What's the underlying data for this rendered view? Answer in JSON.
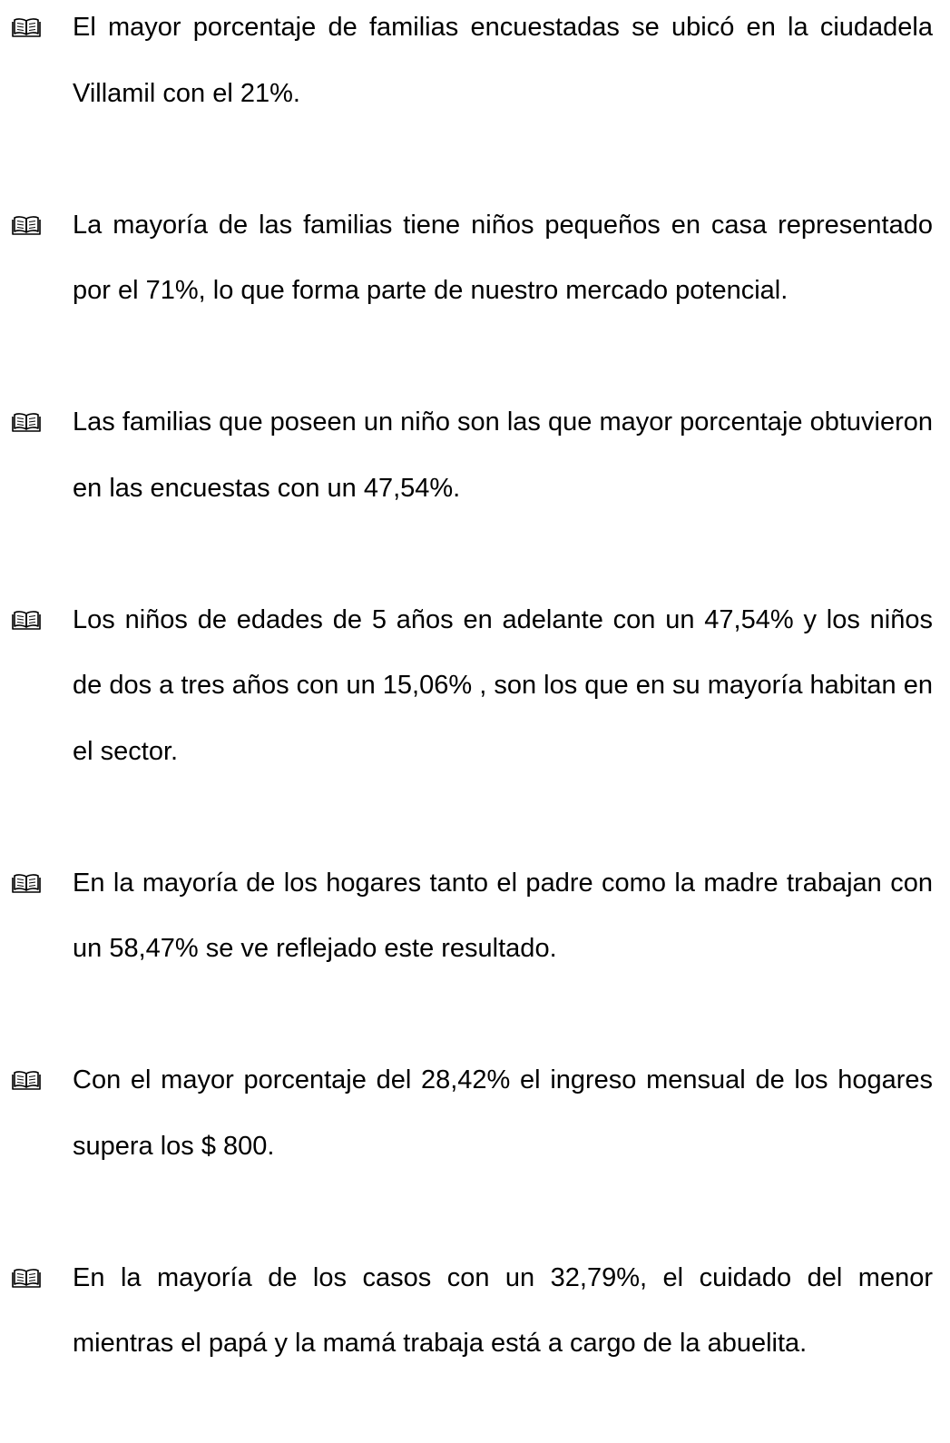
{
  "items": [
    "El mayor porcentaje de familias encuestadas se ubicó en la ciudadela Villamil con el 21%.",
    "La mayoría de las familias tiene niños pequeños en casa representado por el 71%, lo que forma parte de nuestro mercado potencial.",
    "Las familias que poseen un niño son las que mayor porcentaje obtuvieron en las encuestas con un 47,54%.",
    "Los niños de edades de 5 años en adelante con un 47,54% y los niños de dos a tres años con un 15,06% , son los que  en su mayoría habitan en el sector.",
    "En la mayoría de los hogares tanto el padre como la madre trabajan con un 58,47% se ve reflejado este resultado.",
    "Con el mayor porcentaje del 28,42% el ingreso mensual de los hogares supera los $ 800.",
    "En la mayoría de los casos con un 32,79%, el cuidado del menor mientras el papá y la mamá trabaja está a cargo de la abuelita."
  ]
}
